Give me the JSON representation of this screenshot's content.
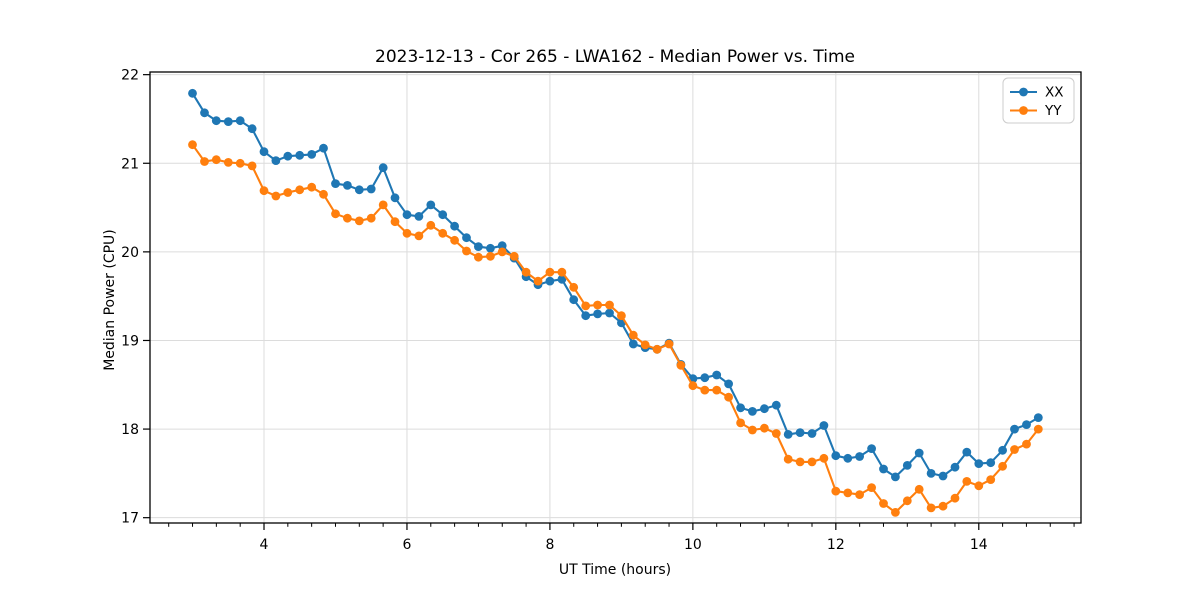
{
  "chart_data": {
    "type": "line",
    "title": "2023-12-13 - Cor 265 - LWA162 - Median Power vs. Time",
    "xlabel": "UT Time (hours)",
    "ylabel": "Median Power (CPU)",
    "xlim": [
      2.405,
      15.43
    ],
    "ylim": [
      16.94,
      22.03
    ],
    "xticks": [
      4,
      6,
      8,
      10,
      12,
      14
    ],
    "yticks": [
      17,
      18,
      19,
      20,
      21,
      22
    ],
    "x_minor_step": 0.33333,
    "grid": true,
    "legend_position": "upper right",
    "colors": {
      "grid": "#dcdcdc",
      "spine": "#000000",
      "background": "#ffffff",
      "text": "#000000",
      "legend_border": "#cccccc"
    },
    "x": [
      3.0,
      3.167,
      3.333,
      3.5,
      3.667,
      3.833,
      4.0,
      4.167,
      4.333,
      4.5,
      4.667,
      4.833,
      5.0,
      5.167,
      5.333,
      5.5,
      5.667,
      5.833,
      6.0,
      6.167,
      6.333,
      6.5,
      6.667,
      6.833,
      7.0,
      7.167,
      7.333,
      7.5,
      7.667,
      7.833,
      8.0,
      8.167,
      8.333,
      8.5,
      8.667,
      8.833,
      9.0,
      9.167,
      9.333,
      9.5,
      9.667,
      9.833,
      10.0,
      10.167,
      10.333,
      10.5,
      10.667,
      10.833,
      11.0,
      11.167,
      11.333,
      11.5,
      11.667,
      11.833,
      12.0,
      12.167,
      12.333,
      12.5,
      12.667,
      12.833,
      13.0,
      13.167,
      13.333,
      13.5,
      13.667,
      13.833,
      14.0,
      14.167,
      14.333,
      14.5,
      14.667,
      14.833
    ],
    "series": [
      {
        "name": "XX",
        "color": "#1f77b4",
        "values": [
          21.79,
          21.57,
          21.48,
          21.47,
          21.48,
          21.39,
          21.13,
          21.03,
          21.08,
          21.09,
          21.1,
          21.17,
          20.77,
          20.75,
          20.7,
          20.71,
          20.95,
          20.61,
          20.42,
          20.4,
          20.53,
          20.42,
          20.29,
          20.16,
          20.06,
          20.04,
          20.07,
          19.93,
          19.72,
          19.63,
          19.67,
          19.69,
          19.46,
          19.28,
          19.3,
          19.31,
          19.2,
          18.96,
          18.92,
          18.9,
          18.97,
          18.73,
          18.57,
          18.58,
          18.61,
          18.51,
          18.24,
          18.2,
          18.23,
          18.27,
          17.94,
          17.96,
          17.95,
          18.04,
          17.7,
          17.67,
          17.69,
          17.78,
          17.55,
          17.46,
          17.59,
          17.73,
          17.5,
          17.47,
          17.57,
          17.74,
          17.61,
          17.62,
          17.76,
          18.0,
          18.05,
          18.13
        ]
      },
      {
        "name": "YY",
        "color": "#ff7f0e",
        "values": [
          21.21,
          21.02,
          21.04,
          21.01,
          21.0,
          20.97,
          20.69,
          20.63,
          20.67,
          20.7,
          20.73,
          20.65,
          20.43,
          20.38,
          20.35,
          20.38,
          20.53,
          20.34,
          20.21,
          20.18,
          20.3,
          20.21,
          20.13,
          20.01,
          19.94,
          19.95,
          20.0,
          19.95,
          19.77,
          19.67,
          19.77,
          19.77,
          19.6,
          19.39,
          19.4,
          19.4,
          19.28,
          19.06,
          18.95,
          18.9,
          18.96,
          18.72,
          18.49,
          18.44,
          18.44,
          18.36,
          18.07,
          17.99,
          18.01,
          17.95,
          17.66,
          17.63,
          17.63,
          17.67,
          17.3,
          17.28,
          17.26,
          17.34,
          17.16,
          17.06,
          17.19,
          17.32,
          17.11,
          17.13,
          17.22,
          17.41,
          17.36,
          17.43,
          17.58,
          17.77,
          17.83,
          18.0
        ]
      }
    ]
  }
}
